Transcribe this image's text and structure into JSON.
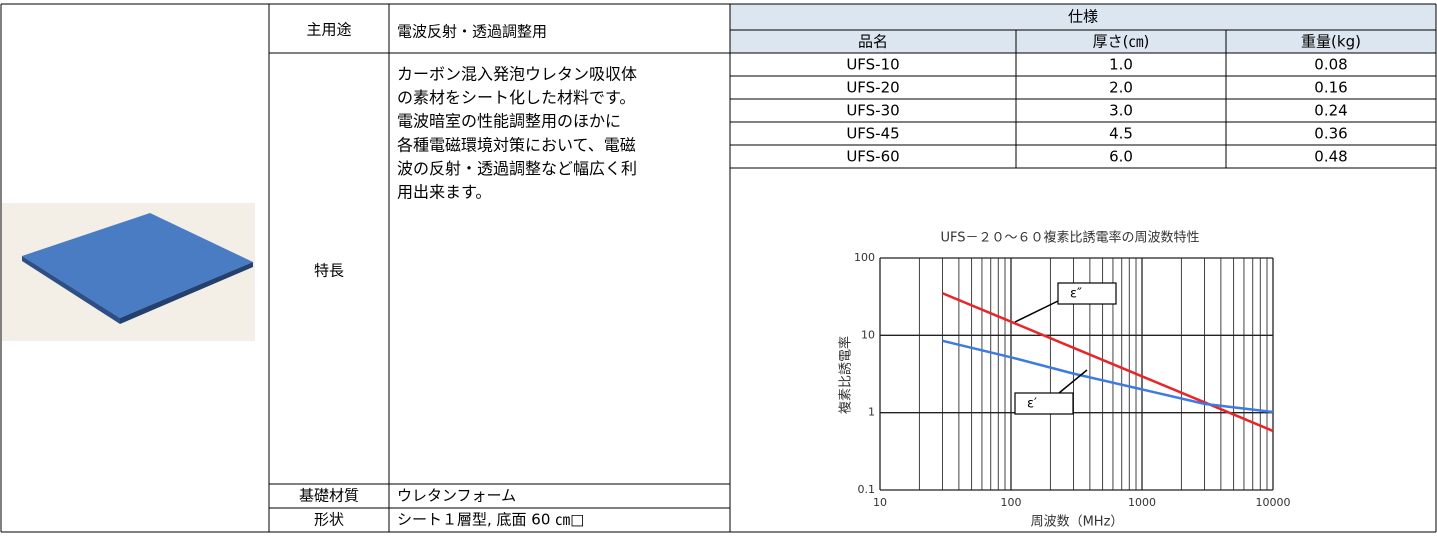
{
  "table": {
    "main_use_label": "主用途",
    "main_use": "電波反射・透過調整用",
    "features_label": "特長",
    "features": [
      "カーボン混入発泡ウレタン吸収体",
      "の素材をシート化した材料です。",
      "電波暗室の性能調整用のほかに",
      "各種電磁環境対策において、電磁",
      "波の反射・透過調整など幅広く利",
      "用出来ます。"
    ],
    "base_material_label": "基礎材質",
    "base_material": "ウレタンフォーム",
    "shape_label": "形状",
    "shape": "シート１層型, 底面 60 ㎝□",
    "spec_header": "仕様",
    "spec_columns": [
      "品名",
      "厚さ(㎝)",
      "重量(kg)"
    ],
    "spec_rows": [
      [
        "UFS-10",
        "1.0",
        "0.08"
      ],
      [
        "UFS-20",
        "2.0",
        "0.16"
      ],
      [
        "UFS-30",
        "3.0",
        "0.24"
      ],
      [
        "UFS-45",
        "4.5",
        "0.36"
      ],
      [
        "UFS-60",
        "6.0",
        "0.48"
      ]
    ]
  },
  "chart_data": {
    "type": "line",
    "title": "UFS－２０～６０複素比誘電率の周波数特性",
    "xlabel": "周波数（MHz）",
    "ylabel": "複素比誘電率",
    "xlog": true,
    "ylog": true,
    "grid": true,
    "xlim": [
      10,
      10000
    ],
    "ylim": [
      0.1,
      100
    ],
    "xticks": [
      10,
      100,
      1000,
      10000
    ],
    "yticks": [
      0.1,
      1,
      10,
      100
    ],
    "series": [
      {
        "name": "ε″",
        "color": "#e8262a",
        "x": [
          30,
          100,
          300,
          1000,
          3000,
          10000
        ],
        "values": [
          35,
          15,
          6.9,
          2.95,
          1.36,
          0.58
        ]
      },
      {
        "name": "ε′",
        "color": "#3d7be0",
        "x": [
          30,
          100,
          300,
          1000,
          3000,
          10000
        ],
        "values": [
          8.5,
          5.2,
          3.2,
          2.0,
          1.3,
          1.02
        ]
      }
    ]
  }
}
